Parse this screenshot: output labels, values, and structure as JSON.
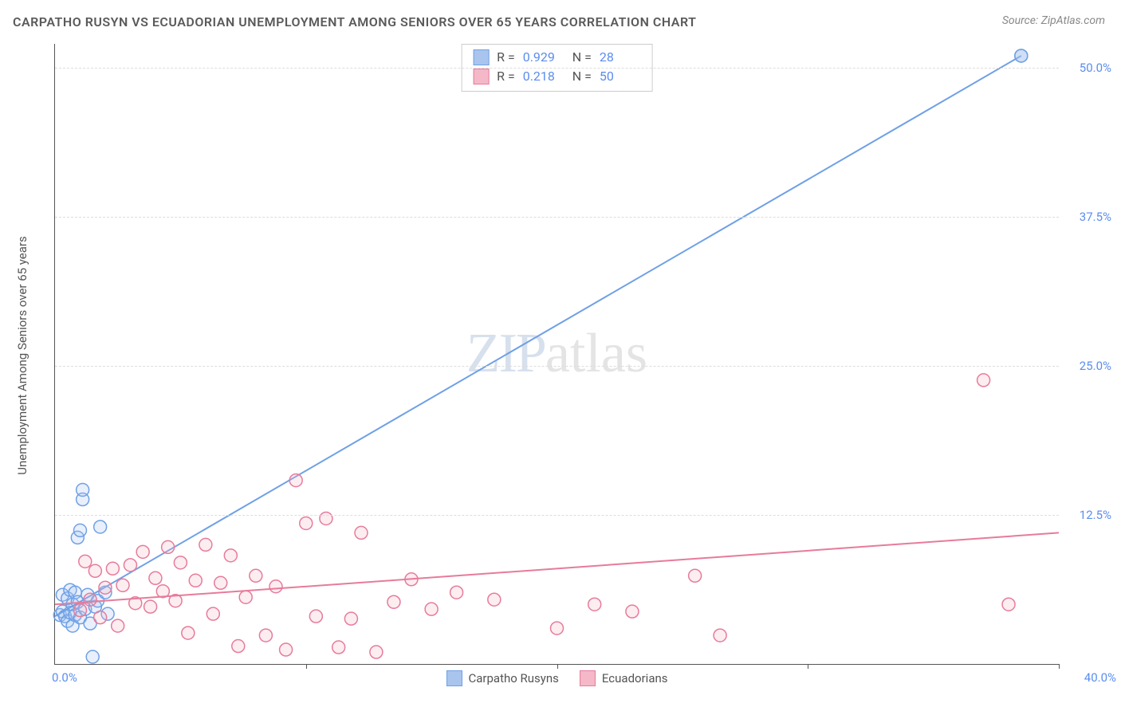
{
  "title": "CARPATHO RUSYN VS ECUADORIAN UNEMPLOYMENT AMONG SENIORS OVER 65 YEARS CORRELATION CHART",
  "source": "Source: ZipAtlas.com",
  "y_axis_title": "Unemployment Among Seniors over 65 years",
  "watermark": {
    "zip": "ZIP",
    "atlas": "atlas"
  },
  "chart": {
    "type": "scatter",
    "xlim": [
      0,
      40
    ],
    "ylim": [
      0,
      52
    ],
    "x_ticks_percent": [
      0,
      10,
      20,
      30,
      40
    ],
    "x_tick_labels": {
      "min": "0.0%",
      "max": "40.0%"
    },
    "y_grid": [
      12.5,
      25.0,
      37.5,
      50.0
    ],
    "y_tick_labels": [
      "12.5%",
      "25.0%",
      "37.5%",
      "50.0%"
    ],
    "background_color": "#ffffff",
    "grid_color": "#dddddd",
    "axis_color": "#555555",
    "tick_label_color": "#5b8def",
    "marker_radius": 8,
    "marker_fill_opacity": 0.25,
    "marker_stroke_width": 1.5,
    "line_width": 2
  },
  "series": [
    {
      "id": "carpatho",
      "label": "Carpatho Rusyns",
      "color": "#6fa0e6",
      "fill": "#a9c5ee",
      "R": "0.929",
      "N": "28",
      "trend": {
        "x1": 0,
        "y1": 4.0,
        "x2": 38.5,
        "y2": 51.0
      },
      "points": [
        [
          0.2,
          4.1
        ],
        [
          0.3,
          5.8
        ],
        [
          0.3,
          4.4
        ],
        [
          0.4,
          4.0
        ],
        [
          0.5,
          5.5
        ],
        [
          0.5,
          3.6
        ],
        [
          0.6,
          6.2
        ],
        [
          0.6,
          4.3
        ],
        [
          0.7,
          5.0
        ],
        [
          0.7,
          3.2
        ],
        [
          0.8,
          6.0
        ],
        [
          0.8,
          4.1
        ],
        [
          0.9,
          10.6
        ],
        [
          0.9,
          5.2
        ],
        [
          1.0,
          11.2
        ],
        [
          1.0,
          3.9
        ],
        [
          1.1,
          13.8
        ],
        [
          1.1,
          14.6
        ],
        [
          1.2,
          4.6
        ],
        [
          1.3,
          5.8
        ],
        [
          1.4,
          3.4
        ],
        [
          1.5,
          0.6
        ],
        [
          1.6,
          4.8
        ],
        [
          1.7,
          5.3
        ],
        [
          1.8,
          11.5
        ],
        [
          2.0,
          6.0
        ],
        [
          2.1,
          4.2
        ],
        [
          38.5,
          51.0
        ]
      ]
    },
    {
      "id": "ecuadorian",
      "label": "Ecuadorians",
      "color": "#e77b9a",
      "fill": "#f4b8c9",
      "R": "0.218",
      "N": "50",
      "trend": {
        "x1": 0,
        "y1": 5.0,
        "x2": 40,
        "y2": 11.0
      },
      "points": [
        [
          1.0,
          4.5
        ],
        [
          1.2,
          8.6
        ],
        [
          1.4,
          5.4
        ],
        [
          1.6,
          7.8
        ],
        [
          1.8,
          3.9
        ],
        [
          2.0,
          6.4
        ],
        [
          2.3,
          8.0
        ],
        [
          2.5,
          3.2
        ],
        [
          2.7,
          6.6
        ],
        [
          3.0,
          8.3
        ],
        [
          3.2,
          5.1
        ],
        [
          3.5,
          9.4
        ],
        [
          3.8,
          4.8
        ],
        [
          4.0,
          7.2
        ],
        [
          4.3,
          6.1
        ],
        [
          4.5,
          9.8
        ],
        [
          4.8,
          5.3
        ],
        [
          5.0,
          8.5
        ],
        [
          5.3,
          2.6
        ],
        [
          5.6,
          7.0
        ],
        [
          6.0,
          10.0
        ],
        [
          6.3,
          4.2
        ],
        [
          6.6,
          6.8
        ],
        [
          7.0,
          9.1
        ],
        [
          7.3,
          1.5
        ],
        [
          7.6,
          5.6
        ],
        [
          8.0,
          7.4
        ],
        [
          8.4,
          2.4
        ],
        [
          8.8,
          6.5
        ],
        [
          9.2,
          1.2
        ],
        [
          9.6,
          15.4
        ],
        [
          10.0,
          11.8
        ],
        [
          10.4,
          4.0
        ],
        [
          10.8,
          12.2
        ],
        [
          11.3,
          1.4
        ],
        [
          11.8,
          3.8
        ],
        [
          12.2,
          11.0
        ],
        [
          12.8,
          1.0
        ],
        [
          13.5,
          5.2
        ],
        [
          14.2,
          7.1
        ],
        [
          15.0,
          4.6
        ],
        [
          16.0,
          6.0
        ],
        [
          17.5,
          5.4
        ],
        [
          20.0,
          3.0
        ],
        [
          21.5,
          5.0
        ],
        [
          23.0,
          4.4
        ],
        [
          25.5,
          7.4
        ],
        [
          26.5,
          2.4
        ],
        [
          37.0,
          23.8
        ],
        [
          38.0,
          5.0
        ]
      ]
    }
  ],
  "stats_labels": {
    "R": "R =",
    "N": "N ="
  },
  "legend_labels": {
    "carpatho": "Carpatho Rusyns",
    "ecuadorian": "Ecuadorians"
  }
}
